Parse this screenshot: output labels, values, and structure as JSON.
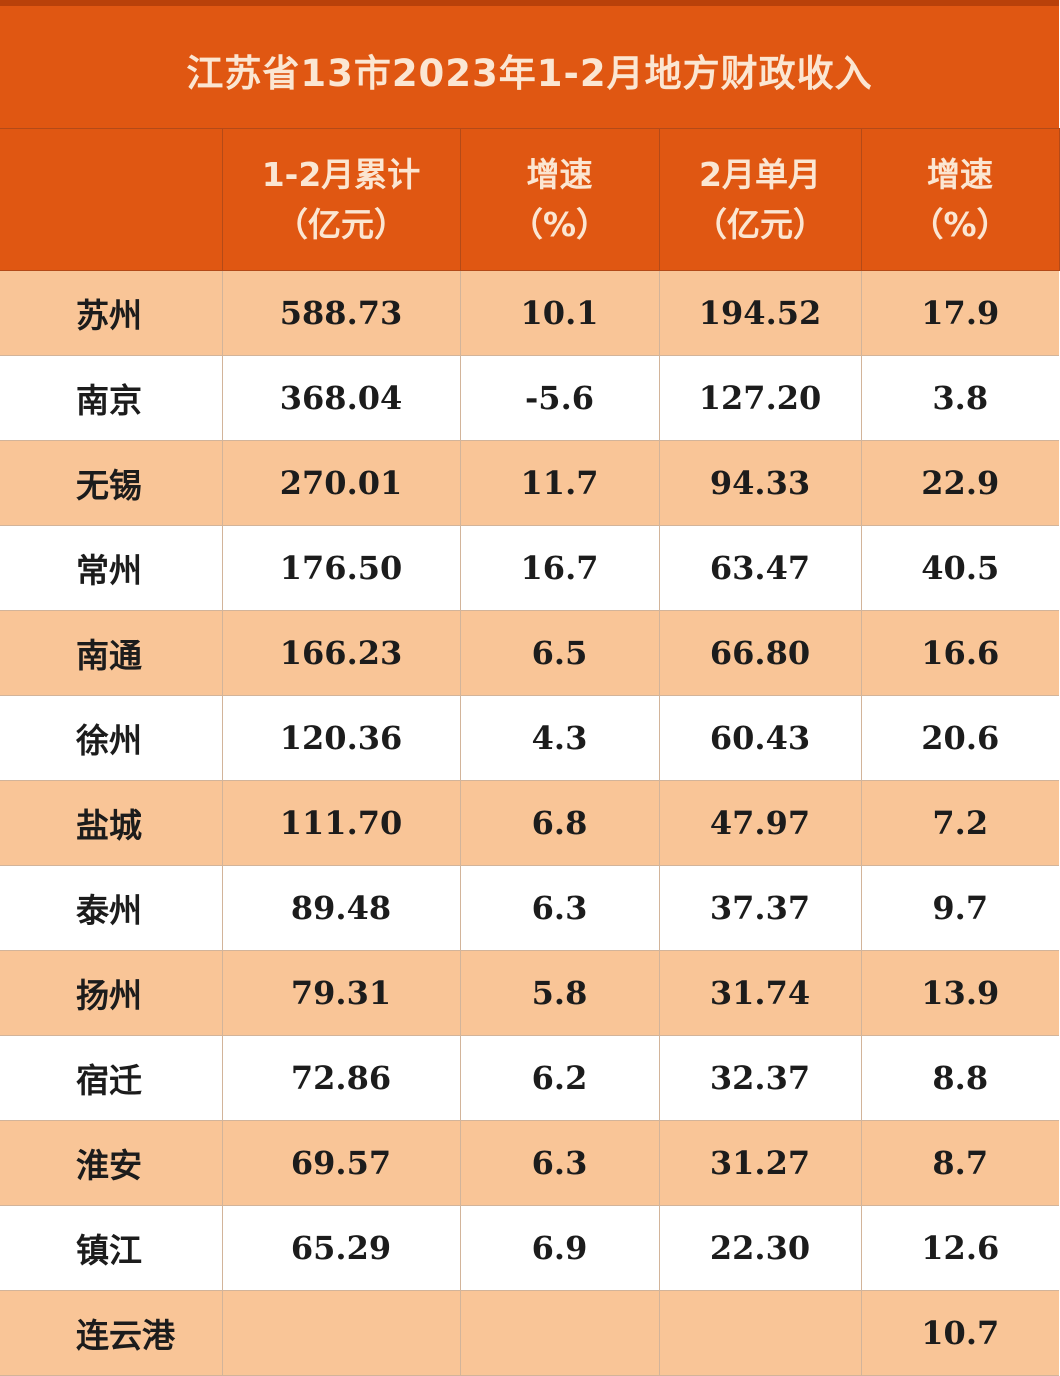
{
  "title": "江苏省13市2023年1-2月地方财政收入",
  "headers": [
    {
      "line1": "",
      "line2": ""
    },
    {
      "line1": "1-2月累计",
      "line2": "（亿元）"
    },
    {
      "line1": "增速",
      "line2": "（%）"
    },
    {
      "line1": "2月单月",
      "line2": "（亿元）"
    },
    {
      "line1": "增速",
      "line2": "（%）"
    }
  ],
  "rows": [
    {
      "city": "苏州",
      "cum": "588.73",
      "cum_growth": "10.1",
      "feb": "194.52",
      "feb_growth": "17.9"
    },
    {
      "city": "南京",
      "cum": "368.04",
      "cum_growth": "-5.6",
      "feb": "127.20",
      "feb_growth": "3.8"
    },
    {
      "city": "无锡",
      "cum": "270.01",
      "cum_growth": "11.7",
      "feb": "94.33",
      "feb_growth": "22.9"
    },
    {
      "city": "常州",
      "cum": "176.50",
      "cum_growth": "16.7",
      "feb": "63.47",
      "feb_growth": "40.5"
    },
    {
      "city": "南通",
      "cum": "166.23",
      "cum_growth": "6.5",
      "feb": "66.80",
      "feb_growth": "16.6"
    },
    {
      "city": "徐州",
      "cum": "120.36",
      "cum_growth": "4.3",
      "feb": "60.43",
      "feb_growth": "20.6"
    },
    {
      "city": "盐城",
      "cum": "111.70",
      "cum_growth": "6.8",
      "feb": "47.97",
      "feb_growth": "7.2"
    },
    {
      "city": "泰州",
      "cum": "89.48",
      "cum_growth": "6.3",
      "feb": "37.37",
      "feb_growth": "9.7"
    },
    {
      "city": "扬州",
      "cum": "79.31",
      "cum_growth": "5.8",
      "feb": "31.74",
      "feb_growth": "13.9"
    },
    {
      "city": "宿迁",
      "cum": "72.86",
      "cum_growth": "6.2",
      "feb": "32.37",
      "feb_growth": "8.8"
    },
    {
      "city": "淮安",
      "cum": "69.57",
      "cum_growth": "6.3",
      "feb": "31.27",
      "feb_growth": "8.7"
    },
    {
      "city": "镇江",
      "cum": "65.29",
      "cum_growth": "6.9",
      "feb": "22.30",
      "feb_growth": "12.6"
    },
    {
      "city": "连云港",
      "cum": "",
      "cum_growth": "",
      "feb": "",
      "feb_growth": "10.7"
    }
  ],
  "colors": {
    "header_bg": "#e05712",
    "header_text": "#fbe6d2",
    "row_shade": "#f9c597",
    "row_plain": "#ffffff"
  }
}
